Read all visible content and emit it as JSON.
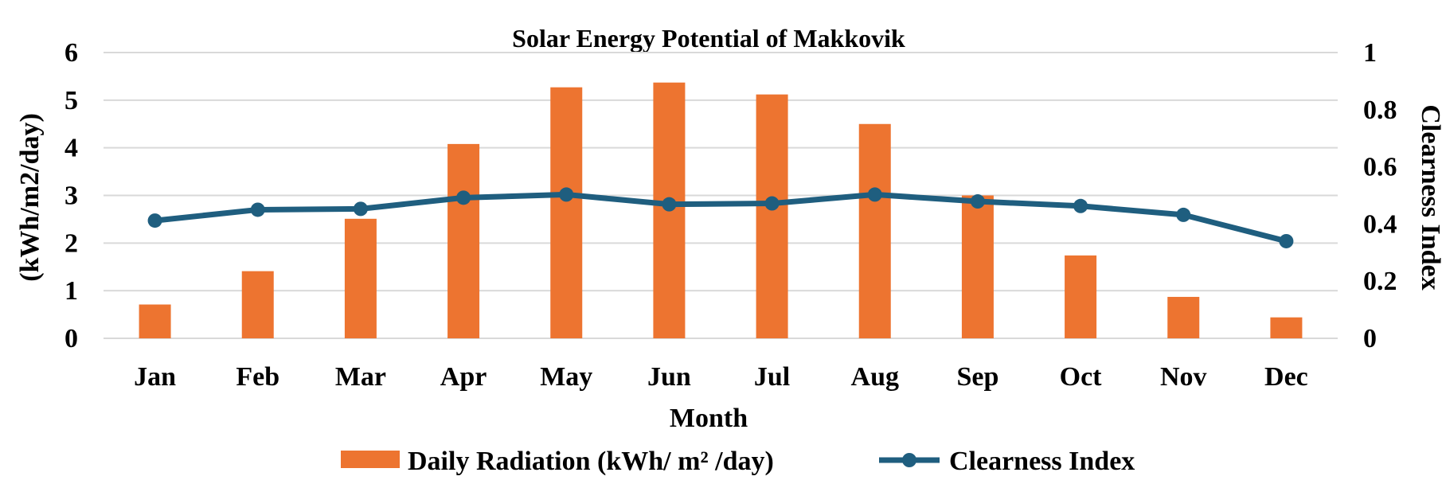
{
  "chart_data": {
    "type": "bar+line",
    "title": "Solar Energy Potential of Makkovik",
    "xlabel": "Month",
    "ylabel_left": "(kWh/m2/day)",
    "ylabel_right": "Clearness Index",
    "categories": [
      "Jan",
      "Feb",
      "Mar",
      "Apr",
      "May",
      "Jun",
      "Jul",
      "Aug",
      "Sep",
      "Oct",
      "Nov",
      "Dec"
    ],
    "y_left": {
      "min": 0,
      "max": 6,
      "ticks": [
        "0",
        "1",
        "2",
        "3",
        "4",
        "5",
        "6"
      ]
    },
    "y_right": {
      "min": 0,
      "max": 1,
      "ticks": [
        "0",
        "0.2",
        "0.4",
        "0.6",
        "0.8",
        "1"
      ]
    },
    "grid": true,
    "legend_position": "bottom",
    "series": [
      {
        "name": "Daily Radiation (kWh/ m² /day)",
        "kind": "bar",
        "axis": "left",
        "color": "#ED7430",
        "values": [
          0.71,
          1.41,
          2.51,
          4.08,
          5.27,
          5.37,
          5.12,
          4.5,
          3.0,
          1.74,
          0.87,
          0.44
        ]
      },
      {
        "name": "Clearness Index",
        "kind": "line",
        "axis": "right",
        "color": "#1F5E7F",
        "values": [
          0.412,
          0.45,
          0.453,
          0.492,
          0.503,
          0.469,
          0.472,
          0.503,
          0.479,
          0.463,
          0.432,
          0.34
        ]
      }
    ]
  }
}
